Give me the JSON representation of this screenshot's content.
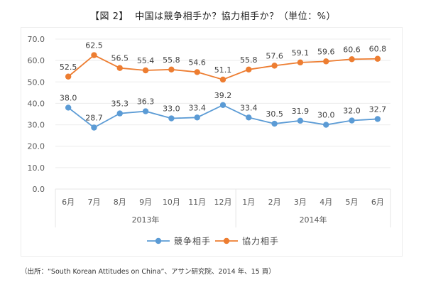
{
  "title": "【図 2】  中国は競争相手か？協力相手か？（単位：%）",
  "source_note": "（出所：“South Korean Attitudes on China”、アサン研究院、2014 年、15 頁）",
  "chart_data": {
    "type": "line",
    "title": "【図 2】  中国は競争相手か？協力相手か？（単位：%）",
    "xlabel": "",
    "ylabel": "",
    "ylim": [
      0,
      70
    ],
    "yticks": [
      "0.0",
      "10.0",
      "20.0",
      "30.0",
      "40.0",
      "50.0",
      "60.0",
      "70.0"
    ],
    "grid": true,
    "categories": [
      "6月",
      "7月",
      "8月",
      "9月",
      "10月",
      "11月",
      "12月",
      "1月",
      "2月",
      "3月",
      "4月",
      "5月",
      "6月"
    ],
    "category_groups": [
      {
        "label": "2013年",
        "count": 7
      },
      {
        "label": "2014年",
        "count": 6
      }
    ],
    "series": [
      {
        "name": "競争相手",
        "color": "#5b9bd5",
        "values": [
          38.0,
          28.7,
          35.3,
          36.3,
          33.0,
          33.4,
          39.2,
          33.4,
          30.5,
          31.9,
          30.0,
          32.0,
          32.7
        ]
      },
      {
        "name": "協力相手",
        "color": "#ed7d31",
        "values": [
          52.5,
          62.5,
          56.5,
          55.4,
          55.8,
          54.6,
          51.1,
          55.8,
          57.6,
          59.1,
          59.6,
          60.6,
          60.8
        ]
      }
    ],
    "data_labels": true,
    "legend_position": "bottom"
  }
}
